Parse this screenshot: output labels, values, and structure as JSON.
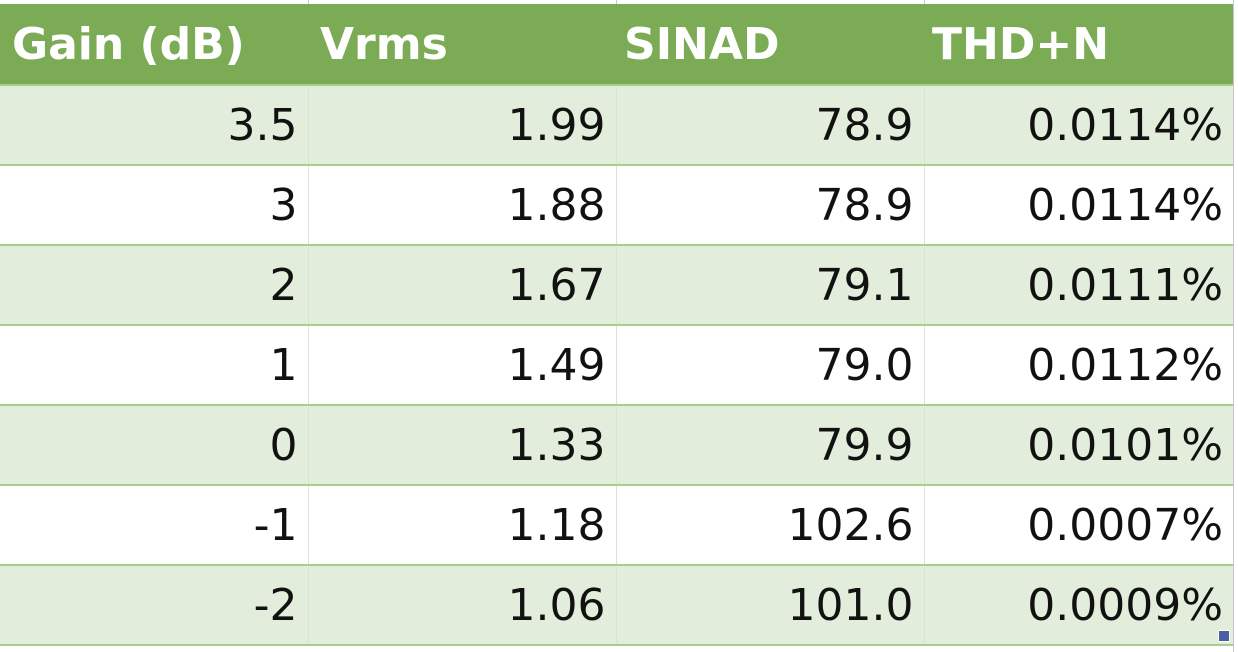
{
  "table": {
    "headers": [
      "Gain (dB)",
      "Vrms",
      "SINAD",
      "THD+N"
    ],
    "rows": [
      [
        "3.5",
        "1.99",
        "78.9",
        "0.0114%"
      ],
      [
        "3",
        "1.88",
        "78.9",
        "0.0114%"
      ],
      [
        "2",
        "1.67",
        "79.1",
        "0.0111%"
      ],
      [
        "1",
        "1.49",
        "79.0",
        "0.0112%"
      ],
      [
        "0",
        "1.33",
        "79.9",
        "0.0101%"
      ],
      [
        "-1",
        "1.18",
        "102.6",
        "0.0007%"
      ],
      [
        "-2",
        "1.06",
        "101.0",
        "0.0009%"
      ]
    ]
  },
  "colors": {
    "header_background": "#7cab55",
    "header_text": "#ffffff",
    "band_row": "#e2eedb",
    "plain_row": "#ffffff",
    "row_border": "#a9cd8e",
    "fill_handle": "#4d5ea3"
  }
}
